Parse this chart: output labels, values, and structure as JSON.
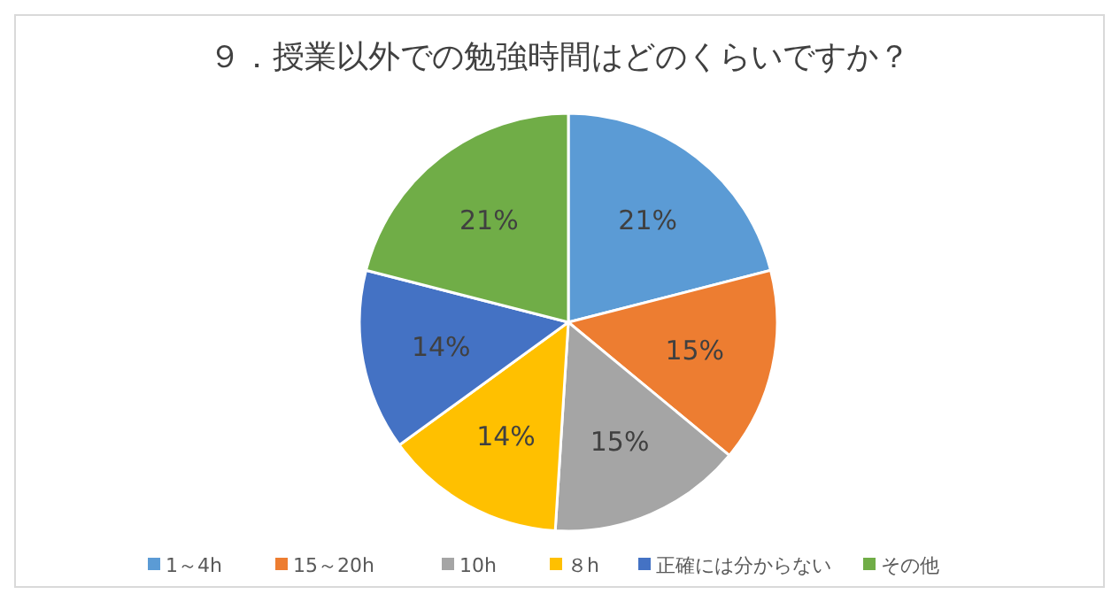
{
  "chart_data": {
    "type": "pie",
    "title": "９．授業以外での勉強時間はどのくらいですか？",
    "categories": [
      "1～4h",
      "15～20h",
      "10h",
      "８h",
      "正確には分からない",
      "その他"
    ],
    "values": [
      21,
      15,
      15,
      14,
      14,
      21
    ],
    "value_labels": [
      "21%",
      "15%",
      "15%",
      "14%",
      "14%",
      "21%"
    ],
    "colors": [
      "#5b9bd5",
      "#ed7d31",
      "#a5a5a5",
      "#ffc000",
      "#4472c4",
      "#70ad47"
    ],
    "legend": "bottom"
  }
}
